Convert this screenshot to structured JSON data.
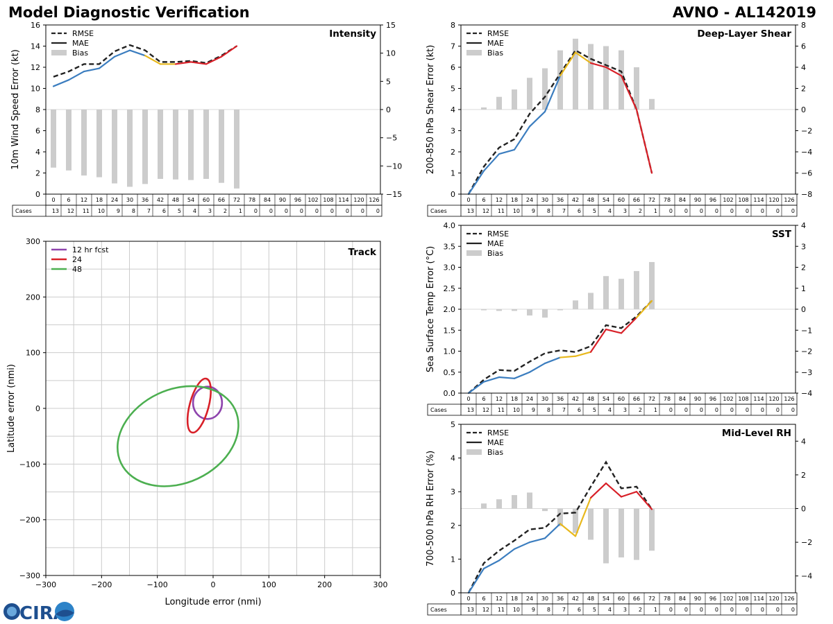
{
  "header": {
    "left_title": "Model Diagnostic Verification",
    "right_title": "AVNO - AL142019"
  },
  "colors": {
    "mae_low": "#3b7dbf",
    "mae_mid": "#e8b81c",
    "mae_high": "#d82028",
    "bias": "#cccccc",
    "rmse": "#222222",
    "track_12": "#8e44ad",
    "track_24": "#d82028",
    "track_48": "#4caf50",
    "grid": "#cccccc"
  },
  "logo": {
    "text": "CIRA"
  },
  "legend_labels": {
    "rmse": "RMSE",
    "mae": "MAE",
    "bias": "Bias"
  },
  "table": {
    "hours": [
      "0",
      "6",
      "12",
      "18",
      "24",
      "30",
      "36",
      "42",
      "48",
      "54",
      "60",
      "66",
      "72",
      "78",
      "84",
      "90",
      "96",
      "102",
      "108",
      "114",
      "120",
      "126"
    ],
    "cases_label": "Cases",
    "cases": [
      "13",
      "12",
      "11",
      "10",
      "9",
      "8",
      "7",
      "6",
      "5",
      "4",
      "3",
      "2",
      "1",
      "0",
      "0",
      "0",
      "0",
      "0",
      "0",
      "0",
      "0",
      "0"
    ]
  },
  "chart_data": [
    {
      "type": "line",
      "title": "Intensity",
      "ylabel": "10m Wind Speed Error (kt)",
      "ylim": [
        0,
        16
      ],
      "yticks": [
        "0",
        "2",
        "4",
        "6",
        "8",
        "10",
        "12",
        "14",
        "16"
      ],
      "y2lim": [
        -15,
        15
      ],
      "y2ticks": [
        "−15",
        "−10",
        "−5",
        "0",
        "5",
        "10",
        "15"
      ],
      "x": [
        0,
        6,
        12,
        18,
        24,
        30,
        36,
        42,
        48,
        54,
        60,
        66,
        72
      ],
      "series": [
        {
          "name": "RMSE",
          "values": [
            11.1,
            11.6,
            12.3,
            12.3,
            13.5,
            14.1,
            13.6,
            12.5,
            12.5,
            12.6,
            12.4,
            13.1,
            14.0
          ]
        },
        {
          "name": "MAE",
          "values": [
            10.2,
            10.8,
            11.6,
            11.9,
            13.0,
            13.6,
            13.1,
            12.3,
            12.3,
            12.5,
            12.3,
            13.0,
            14.0
          ]
        },
        {
          "name": "Bias",
          "values": [
            -10.3,
            -10.8,
            -11.7,
            -12.0,
            -13.1,
            -13.7,
            -13.2,
            -12.3,
            -12.4,
            -12.5,
            -12.3,
            -13.0,
            -14.0
          ]
        }
      ]
    },
    {
      "type": "line",
      "title": "Deep-Layer Shear",
      "ylabel": "200-850 hPa Shear Error (kt)",
      "ylim": [
        0,
        8
      ],
      "yticks": [
        "0",
        "1",
        "2",
        "3",
        "4",
        "5",
        "6",
        "7",
        "8"
      ],
      "y2lim": [
        -8,
        8
      ],
      "y2ticks": [
        "−8",
        "−6",
        "−4",
        "−2",
        "0",
        "2",
        "4",
        "6",
        "8"
      ],
      "x": [
        0,
        6,
        12,
        18,
        24,
        30,
        36,
        42,
        48,
        54,
        60,
        66,
        72
      ],
      "series": [
        {
          "name": "RMSE",
          "values": [
            0,
            1.3,
            2.2,
            2.6,
            3.8,
            4.6,
            5.7,
            6.8,
            6.4,
            6.1,
            5.8,
            4.0,
            1.0
          ]
        },
        {
          "name": "MAE",
          "values": [
            0,
            1.1,
            1.9,
            2.1,
            3.2,
            3.9,
            5.6,
            6.7,
            6.2,
            6.0,
            5.6,
            4.0,
            1.0
          ]
        },
        {
          "name": "Bias",
          "values": [
            0,
            0.2,
            1.2,
            1.9,
            3.0,
            3.9,
            5.6,
            6.7,
            6.2,
            6.0,
            5.6,
            4.0,
            1.0
          ]
        }
      ]
    },
    {
      "type": "line",
      "title": "SST",
      "ylabel": "Sea Surface Temp Error (°C)",
      "ylim": [
        0,
        4.0
      ],
      "yticks": [
        "0.0",
        "0.5",
        "1.0",
        "1.5",
        "2.0",
        "2.5",
        "3.0",
        "3.5",
        "4.0"
      ],
      "y2lim": [
        -4,
        4
      ],
      "y2ticks": [
        "−4",
        "−3",
        "−2",
        "−1",
        "0",
        "1",
        "2",
        "3",
        "4"
      ],
      "x": [
        0,
        6,
        12,
        18,
        24,
        30,
        36,
        42,
        48,
        54,
        60,
        66,
        72
      ],
      "series": [
        {
          "name": "RMSE",
          "values": [
            0,
            0.32,
            0.55,
            0.53,
            0.75,
            0.95,
            1.02,
            0.98,
            1.12,
            1.62,
            1.55,
            1.83,
            2.2
          ]
        },
        {
          "name": "MAE",
          "values": [
            0,
            0.27,
            0.38,
            0.35,
            0.5,
            0.71,
            0.85,
            0.88,
            0.98,
            1.52,
            1.43,
            1.8,
            2.2
          ]
        },
        {
          "name": "Bias",
          "values": [
            0,
            -0.05,
            -0.08,
            -0.08,
            -0.3,
            -0.4,
            -0.05,
            0.42,
            0.78,
            1.58,
            1.45,
            1.82,
            2.25
          ]
        }
      ]
    },
    {
      "type": "line",
      "title": "Mid-Level RH",
      "ylabel": "700-500 hPa RH Error (%)",
      "ylim": [
        0,
        5
      ],
      "yticks": [
        "0",
        "1",
        "2",
        "3",
        "4",
        "5"
      ],
      "y2lim": [
        -5,
        5
      ],
      "y2ticks": [
        "−4",
        "−2",
        "0",
        "2",
        "4"
      ],
      "y2tickvals": [
        -4,
        -2,
        0,
        2,
        4
      ],
      "x": [
        0,
        6,
        12,
        18,
        24,
        30,
        36,
        42,
        48,
        54,
        60,
        66,
        72
      ],
      "series": [
        {
          "name": "RMSE",
          "values": [
            0,
            0.88,
            1.25,
            1.55,
            1.88,
            1.93,
            2.35,
            2.38,
            3.15,
            3.88,
            3.1,
            3.15,
            2.48
          ]
        },
        {
          "name": "MAE",
          "values": [
            0,
            0.72,
            0.96,
            1.3,
            1.5,
            1.62,
            2.05,
            1.68,
            2.82,
            3.25,
            2.85,
            3.0,
            2.48
          ]
        },
        {
          "name": "Bias",
          "values": [
            0,
            0.3,
            0.55,
            0.8,
            0.95,
            -0.15,
            -1.05,
            -1.45,
            -1.85,
            -3.25,
            -2.9,
            -3.05,
            -2.5
          ]
        }
      ]
    },
    {
      "type": "scatter",
      "title": "Track",
      "xlabel": "Longitude error (nmi)",
      "ylabel": "Latitude error (nmi)",
      "xlim": [
        -300,
        300
      ],
      "ylim": [
        -300,
        300
      ],
      "ticks": [
        "−300",
        "−200",
        "−100",
        "0",
        "100",
        "200",
        "300"
      ],
      "legend": [
        "12 hr fcst",
        "24",
        "48"
      ],
      "ellipses": [
        {
          "name": "12 hr fcst",
          "cx": -10,
          "cy": 10,
          "rx": 26,
          "ry": 29,
          "rot": 0
        },
        {
          "name": "24",
          "cx": -25,
          "cy": 5,
          "rx": 17,
          "ry": 50,
          "rot": 15
        },
        {
          "name": "48",
          "cx": -63,
          "cy": -50,
          "rx": 113,
          "ry": 84,
          "rot": -25
        }
      ]
    }
  ]
}
